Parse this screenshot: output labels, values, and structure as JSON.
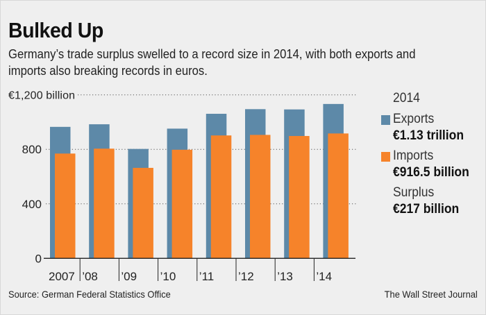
{
  "title": "Bulked Up",
  "subtitle_lines": [
    "Germany’s trade surplus swelled to a record size in 2014, with both exports and",
    "imports also breaking records in euros."
  ],
  "source": "Source: German Federal Statistics Office",
  "credit": "The Wall Street Journal",
  "colors": {
    "exports": "#5d89a8",
    "imports": "#f6832a",
    "background": "#efefef"
  },
  "legend": {
    "year": "2014",
    "exports_label": "Exports",
    "exports_value": "€1.13 trillion",
    "imports_label": "Imports",
    "imports_value": "€916.5 billion",
    "surplus_label": "Surplus",
    "surplus_value": "€217 billion"
  },
  "chart_data": {
    "type": "bar",
    "title": "Bulked Up",
    "categories": [
      "2007",
      "’08",
      "’09",
      "’10",
      "’11",
      "’12",
      "’13",
      "’14"
    ],
    "series": [
      {
        "name": "Exports",
        "values": [
          965,
          984,
          803,
          952,
          1061,
          1095,
          1093,
          1133
        ]
      },
      {
        "name": "Imports",
        "values": [
          769,
          805,
          664,
          797,
          902,
          906,
          898,
          916.5
        ]
      }
    ],
    "yticks": [
      0,
      400,
      800,
      1200
    ],
    "ytick_labels": [
      "0",
      "400",
      "800",
      "€1,200 billion"
    ],
    "ylim": [
      0,
      1200
    ],
    "xlabel": "",
    "ylabel": "",
    "grid": "dotted horizontal",
    "legend_position": "right"
  }
}
